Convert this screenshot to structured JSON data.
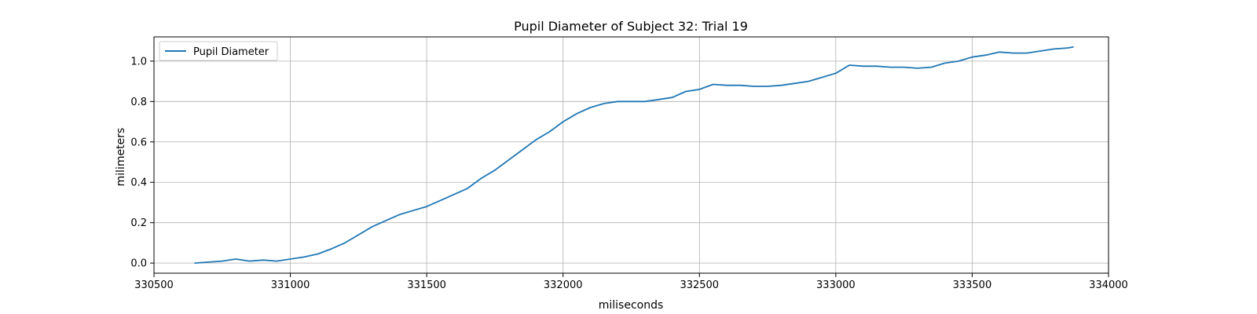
{
  "chart_data": {
    "type": "line",
    "title": "Pupil Diameter of Subject 32: Trial 19",
    "xlabel": "miliseconds",
    "ylabel": "milimeters",
    "xlim": [
      330500,
      334000
    ],
    "ylim": [
      -0.05,
      1.12
    ],
    "xticks": [
      330500,
      331000,
      331500,
      332000,
      332500,
      333000,
      333500,
      334000
    ],
    "yticks": [
      0.0,
      0.2,
      0.4,
      0.6,
      0.8,
      1.0
    ],
    "grid": true,
    "legend_position": "top-left",
    "series": [
      {
        "name": "Pupil Diameter",
        "color": "#1f77b4",
        "x": [
          330650,
          330700,
          330750,
          330800,
          330850,
          330900,
          330950,
          331000,
          331050,
          331100,
          331150,
          331200,
          331250,
          331300,
          331350,
          331400,
          331450,
          331500,
          331550,
          331600,
          331650,
          331700,
          331750,
          331800,
          331850,
          331900,
          331950,
          332000,
          332050,
          332100,
          332150,
          332200,
          332250,
          332300,
          332350,
          332400,
          332450,
          332500,
          332550,
          332600,
          332650,
          332700,
          332750,
          332800,
          332850,
          332900,
          332950,
          333000,
          333050,
          333100,
          333150,
          333200,
          333250,
          333300,
          333350,
          333400,
          333450,
          333500,
          333550,
          333600,
          333650,
          333700,
          333750,
          333800,
          333850,
          333870
        ],
        "y": [
          0.0,
          0.005,
          0.01,
          0.02,
          0.01,
          0.015,
          0.01,
          0.02,
          0.03,
          0.045,
          0.07,
          0.1,
          0.14,
          0.18,
          0.21,
          0.24,
          0.26,
          0.28,
          0.31,
          0.34,
          0.37,
          0.42,
          0.46,
          0.51,
          0.56,
          0.61,
          0.65,
          0.7,
          0.74,
          0.77,
          0.79,
          0.8,
          0.8,
          0.8,
          0.81,
          0.82,
          0.85,
          0.86,
          0.885,
          0.88,
          0.88,
          0.875,
          0.875,
          0.88,
          0.89,
          0.9,
          0.92,
          0.94,
          0.98,
          0.975,
          0.975,
          0.97,
          0.97,
          0.965,
          0.97,
          0.99,
          1.0,
          1.02,
          1.03,
          1.045,
          1.04,
          1.04,
          1.05,
          1.06,
          1.065,
          1.07
        ]
      }
    ]
  }
}
